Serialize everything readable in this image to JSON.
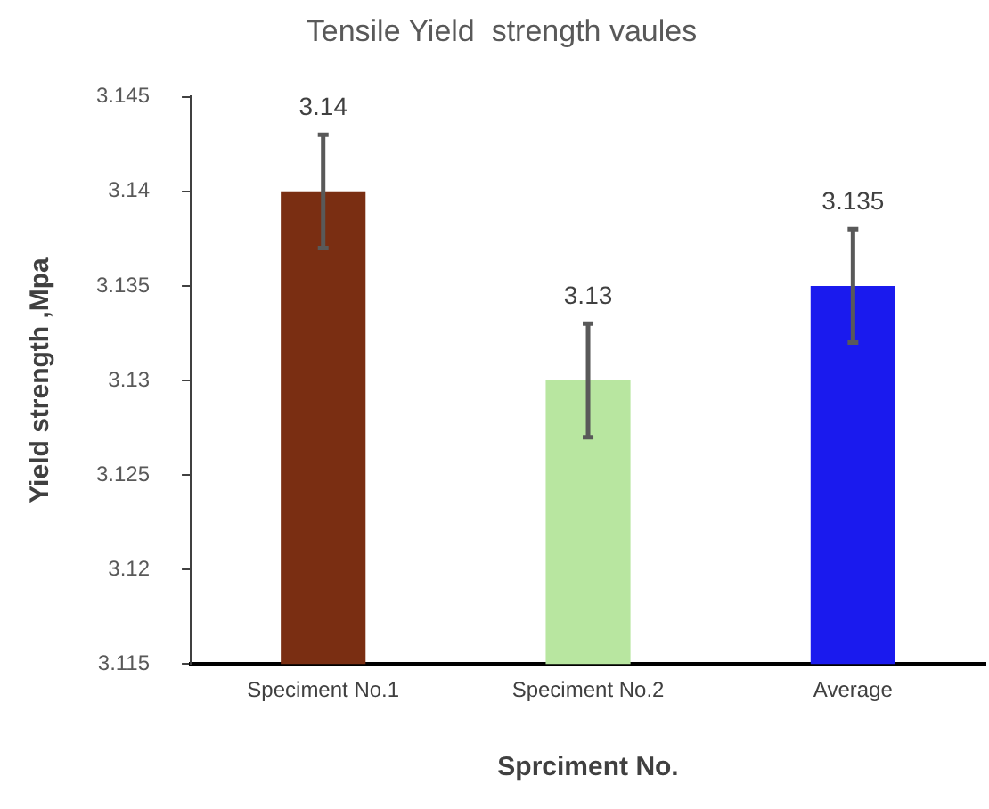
{
  "chart_data": {
    "type": "bar",
    "title": "Tensile Yield  strength vaules",
    "xlabel": "Sprciment No.",
    "ylabel": "Yield strength ,Mpa",
    "categories": [
      "Speciment No.1",
      "Speciment No.2",
      "Average"
    ],
    "values": [
      3.14,
      3.13,
      3.135
    ],
    "colors": [
      "#7a2e12",
      "#b8e6a0",
      "#1a1aee"
    ],
    "errors": [
      0.003,
      0.003,
      0.003
    ],
    "ylim": [
      3.115,
      3.145
    ],
    "yticks": [
      3.115,
      3.12,
      3.125,
      3.13,
      3.135,
      3.14,
      3.145
    ],
    "data_labels": true,
    "grid": false,
    "legend": false
  }
}
